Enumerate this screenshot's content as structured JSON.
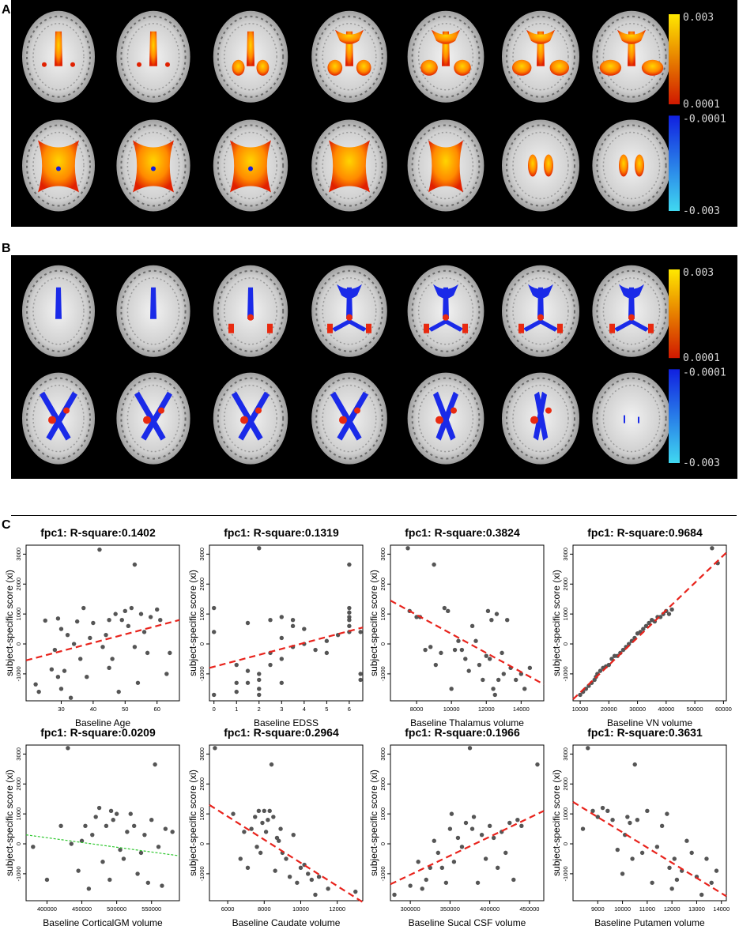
{
  "panels": {
    "a": {
      "letter": "A"
    },
    "b": {
      "letter": "B"
    },
    "c": {
      "letter": "C"
    }
  },
  "colorbar": {
    "pos_max": "0.003",
    "pos_min": "0.0001",
    "neg_min": "-0.0001",
    "neg_max": "-0.003",
    "colors": {
      "pos_low": "#d01800",
      "pos_high": "#ffe800",
      "neg_low": "#1020e0",
      "neg_high": "#40d8f0"
    }
  },
  "brain_rows": [
    {
      "panel": "A",
      "row": 1,
      "slices": 7
    },
    {
      "panel": "A",
      "row": 2,
      "slices": 7
    },
    {
      "panel": "B",
      "row": 1,
      "slices": 7
    },
    {
      "panel": "B",
      "row": 2,
      "slices": 7
    }
  ],
  "colors": {
    "point": "#555555",
    "fit_significant": "#e8231c",
    "fit_nonsignificant": "#2fc82f",
    "brain_background": "#000000"
  },
  "chart_data": [
    {
      "type": "scatter",
      "title": "fpc1: R-square:0.1402",
      "xlabel": "Baseline Age",
      "ylabel": "subject-specific score (xi)",
      "xticks": [
        30,
        40,
        50,
        60
      ],
      "xlim": [
        19,
        67
      ],
      "yticks": [
        -1000,
        0,
        1000,
        2000,
        3000
      ],
      "ylim": [
        -1900,
        3300
      ],
      "fit": {
        "x": [
          19,
          67
        ],
        "y": [
          -550,
          800
        ],
        "style": "dashed",
        "color": "#e8231c"
      },
      "x": [
        22,
        23,
        25,
        27,
        28,
        29,
        29,
        30,
        30,
        31,
        32,
        33,
        34,
        35,
        36,
        37,
        38,
        39,
        40,
        42,
        43,
        44,
        45,
        45,
        46,
        47,
        48,
        49,
        50,
        51,
        52,
        53,
        53,
        54,
        55,
        56,
        57,
        58,
        60,
        61,
        63,
        64
      ],
      "y": [
        -1350,
        -1600,
        780,
        -850,
        -200,
        -1100,
        850,
        -1500,
        500,
        -900,
        300,
        -1800,
        0,
        750,
        -500,
        1200,
        -1100,
        200,
        700,
        3150,
        -100,
        300,
        -800,
        800,
        -500,
        1000,
        -1600,
        800,
        1100,
        600,
        1200,
        2650,
        -100,
        -1300,
        1000,
        400,
        -300,
        900,
        1150,
        800,
        -1000,
        -300
      ]
    },
    {
      "type": "scatter",
      "title": "fpc1: R-square:0.1319",
      "xlabel": "Baseline EDSS",
      "ylabel": "subject-specific score (xi)",
      "xticks": [
        0,
        1,
        2,
        3,
        4,
        5,
        6
      ],
      "xlim": [
        -0.2,
        6.6
      ],
      "yticks": [
        -1000,
        0,
        1000,
        2000,
        3000
      ],
      "ylim": [
        -1900,
        3300
      ],
      "fit": {
        "x": [
          -0.2,
          6.6
        ],
        "y": [
          -800,
          550
        ],
        "style": "dashed",
        "color": "#e8231c"
      },
      "x": [
        0,
        0,
        0,
        1,
        1,
        1,
        1.5,
        1.5,
        1.5,
        2,
        2,
        2,
        2,
        2,
        2.5,
        2.5,
        2.5,
        3,
        3,
        3,
        3,
        3.5,
        3.5,
        3.5,
        4,
        4,
        4.5,
        5,
        5,
        5.5,
        6,
        6,
        6,
        6,
        6,
        6,
        6,
        6.5,
        6.5,
        6.5
      ],
      "y": [
        -1700,
        1200,
        400,
        -700,
        -1300,
        -1600,
        700,
        -900,
        -1300,
        3200,
        -1000,
        -1200,
        -1500,
        -1700,
        800,
        -700,
        -300,
        900,
        200,
        -500,
        -1300,
        600,
        -100,
        800,
        500,
        0,
        -200,
        100,
        -300,
        300,
        2650,
        1200,
        1050,
        900,
        800,
        600,
        400,
        400,
        -1000,
        -1200
      ]
    },
    {
      "type": "scatter",
      "title": "fpc1: R-square:0.3824",
      "xlabel": "Baseline Thalamus volume",
      "ylabel": "subject-specific score (xi)",
      "xticks": [
        8000,
        10000,
        12000,
        14000
      ],
      "xlim": [
        6500,
        15300
      ],
      "yticks": [
        -1000,
        0,
        1000,
        2000,
        3000
      ],
      "ylim": [
        -1900,
        3300
      ],
      "fit": {
        "x": [
          6500,
          15300
        ],
        "y": [
          1450,
          -1350
        ],
        "style": "dashed",
        "color": "#e8231c"
      },
      "x": [
        7500,
        7600,
        8000,
        8200,
        8500,
        8800,
        9000,
        9100,
        9400,
        9600,
        9800,
        10000,
        10200,
        10400,
        10600,
        10800,
        11000,
        11200,
        11400,
        11600,
        11800,
        12000,
        12100,
        12200,
        12300,
        12400,
        12500,
        12600,
        12700,
        12900,
        13000,
        13200,
        13400,
        13700,
        14000,
        14200,
        14500
      ],
      "y": [
        3200,
        1100,
        900,
        900,
        -200,
        -100,
        2650,
        -700,
        -300,
        1200,
        1100,
        -1500,
        -200,
        100,
        -200,
        -500,
        -900,
        600,
        100,
        -700,
        -1200,
        -400,
        1100,
        -500,
        800,
        -1500,
        -1700,
        1000,
        -1200,
        -300,
        -1000,
        800,
        -800,
        -1200,
        -1000,
        -1500,
        -800
      ]
    },
    {
      "type": "scatter",
      "title": "fpc1: R-square:0.9684",
      "xlabel": "Baseline VN volume",
      "ylabel": "subject-specific score (xi)",
      "xticks": [
        10000,
        20000,
        30000,
        40000,
        50000,
        60000
      ],
      "xlim": [
        7500,
        61000
      ],
      "yticks": [
        -1000,
        0,
        1000,
        2000,
        3000
      ],
      "ylim": [
        -1900,
        3300
      ],
      "fit": {
        "x": [
          7500,
          61000
        ],
        "y": [
          -1850,
          3050
        ],
        "style": "dashed",
        "color": "#e8231c"
      },
      "x": [
        10000,
        11000,
        12000,
        13000,
        14000,
        15000,
        15500,
        16000,
        17000,
        18000,
        19000,
        20000,
        21000,
        22000,
        23000,
        24000,
        25000,
        26000,
        27000,
        28000,
        29000,
        30000,
        31000,
        32000,
        33000,
        34000,
        35000,
        36000,
        37000,
        38000,
        39000,
        40000,
        41000,
        42000,
        56000,
        58000
      ],
      "y": [
        -1700,
        -1600,
        -1500,
        -1400,
        -1300,
        -1200,
        -1100,
        -1000,
        -900,
        -800,
        -750,
        -700,
        -500,
        -400,
        -400,
        -300,
        -200,
        -100,
        0,
        100,
        200,
        350,
        400,
        500,
        600,
        700,
        800,
        750,
        900,
        900,
        1000,
        1100,
        1000,
        1150,
        3200,
        2700
      ]
    },
    {
      "type": "scatter",
      "title": "fpc1: R-square:0.0209",
      "xlabel": "Baseline CorticalGM volume",
      "ylabel": "subject-specific score (xi)",
      "xticks": [
        400000,
        450000,
        500000,
        550000
      ],
      "xlim": [
        370000,
        590000
      ],
      "yticks": [
        -1000,
        0,
        1000,
        2000,
        3000
      ],
      "ylim": [
        -1900,
        3300
      ],
      "fit": {
        "x": [
          370000,
          590000
        ],
        "y": [
          300,
          -400
        ],
        "style": "dashed",
        "color": "#2fc82f"
      },
      "x": [
        380000,
        400000,
        420000,
        430000,
        435000,
        445000,
        450000,
        455000,
        460000,
        465000,
        470000,
        475000,
        480000,
        485000,
        490000,
        492000,
        495000,
        500000,
        505000,
        510000,
        515000,
        520000,
        525000,
        530000,
        535000,
        540000,
        545000,
        550000,
        555000,
        560000,
        565000,
        570000,
        580000
      ],
      "y": [
        -100,
        -1200,
        600,
        3200,
        0,
        -900,
        100,
        600,
        -1500,
        300,
        900,
        1200,
        -600,
        600,
        -1200,
        1100,
        800,
        1000,
        -200,
        -500,
        400,
        1000,
        600,
        -1000,
        -300,
        300,
        -1300,
        800,
        2650,
        -100,
        -1400,
        500,
        400
      ]
    },
    {
      "type": "scatter",
      "title": "fpc1: R-square:0.2964",
      "xlabel": "Baseline Caudate volume",
      "ylabel": "subject-specific score (xi)",
      "xticks": [
        6000,
        8000,
        10000,
        12000
      ],
      "xlim": [
        5000,
        13400
      ],
      "yticks": [
        -1000,
        0,
        1000,
        2000,
        3000
      ],
      "ylim": [
        -1900,
        3300
      ],
      "fit": {
        "x": [
          5000,
          13400
        ],
        "y": [
          1300,
          -1950
        ],
        "style": "dashed",
        "color": "#e8231c"
      },
      "x": [
        5300,
        6300,
        6700,
        6900,
        7100,
        7300,
        7500,
        7600,
        7700,
        7800,
        7900,
        8000,
        8100,
        8200,
        8300,
        8400,
        8500,
        8600,
        8700,
        8800,
        8900,
        9000,
        9200,
        9400,
        9600,
        9800,
        10000,
        10200,
        10400,
        10600,
        10800,
        11000,
        11500,
        13000
      ],
      "y": [
        3200,
        1000,
        -500,
        400,
        -800,
        500,
        900,
        -100,
        1100,
        -300,
        700,
        1100,
        400,
        800,
        1100,
        2650,
        900,
        -900,
        200,
        100,
        500,
        -300,
        -500,
        -1100,
        300,
        -1300,
        -800,
        -700,
        -1000,
        -1200,
        -1700,
        -1100,
        -1500,
        -1600
      ]
    },
    {
      "type": "scatter",
      "title": "fpc1: R-square:0.1966",
      "xlabel": "Baseline Sucal CSF volume",
      "ylabel": "subject-specific score (xi)",
      "xticks": [
        300000,
        350000,
        400000,
        450000
      ],
      "xlim": [
        275000,
        468000
      ],
      "yticks": [
        -1000,
        0,
        1000,
        2000,
        3000
      ],
      "ylim": [
        -1900,
        3300
      ],
      "fit": {
        "x": [
          275000,
          468000
        ],
        "y": [
          -1350,
          1100
        ],
        "style": "dashed",
        "color": "#e8231c"
      },
      "x": [
        280000,
        300000,
        310000,
        315000,
        320000,
        325000,
        330000,
        335000,
        340000,
        345000,
        350000,
        352000,
        355000,
        360000,
        365000,
        370000,
        375000,
        378000,
        380000,
        385000,
        390000,
        395000,
        400000,
        405000,
        410000,
        415000,
        420000,
        425000,
        430000,
        435000,
        440000,
        460000
      ],
      "y": [
        -1700,
        -1400,
        -600,
        -1500,
        -1200,
        -800,
        100,
        -300,
        -800,
        -1300,
        500,
        1000,
        -600,
        200,
        -100,
        700,
        3200,
        500,
        900,
        -1300,
        300,
        -500,
        600,
        200,
        -800,
        400,
        -300,
        700,
        -1200,
        800,
        600,
        2650
      ]
    },
    {
      "type": "scatter",
      "title": "fpc1: R-square:0.3631",
      "xlabel": "Baseline Putamen volume",
      "ylabel": "subject-specific score (xi)",
      "xticks": [
        9000,
        10000,
        11000,
        12000,
        13000,
        14000
      ],
      "xlim": [
        8000,
        14200
      ],
      "yticks": [
        -1000,
        0,
        1000,
        2000,
        3000
      ],
      "ylim": [
        -1900,
        3300
      ],
      "fit": {
        "x": [
          8000,
          14200
        ],
        "y": [
          1400,
          -1750
        ],
        "style": "dashed",
        "color": "#e8231c"
      },
      "x": [
        8400,
        8600,
        8800,
        9000,
        9200,
        9400,
        9600,
        9800,
        10000,
        10100,
        10200,
        10300,
        10400,
        10500,
        10600,
        10800,
        11000,
        11200,
        11400,
        11600,
        11800,
        11900,
        12000,
        12100,
        12200,
        12400,
        12600,
        12800,
        13000,
        13200,
        13400,
        13600,
        13800
      ],
      "y": [
        500,
        3200,
        1100,
        900,
        1200,
        1100,
        800,
        -200,
        -1000,
        300,
        900,
        700,
        -500,
        2650,
        800,
        -300,
        1100,
        -1300,
        -100,
        600,
        1000,
        -800,
        -1500,
        -500,
        -1200,
        -900,
        100,
        -300,
        -1100,
        -1700,
        -500,
        -1300,
        -900
      ]
    }
  ]
}
